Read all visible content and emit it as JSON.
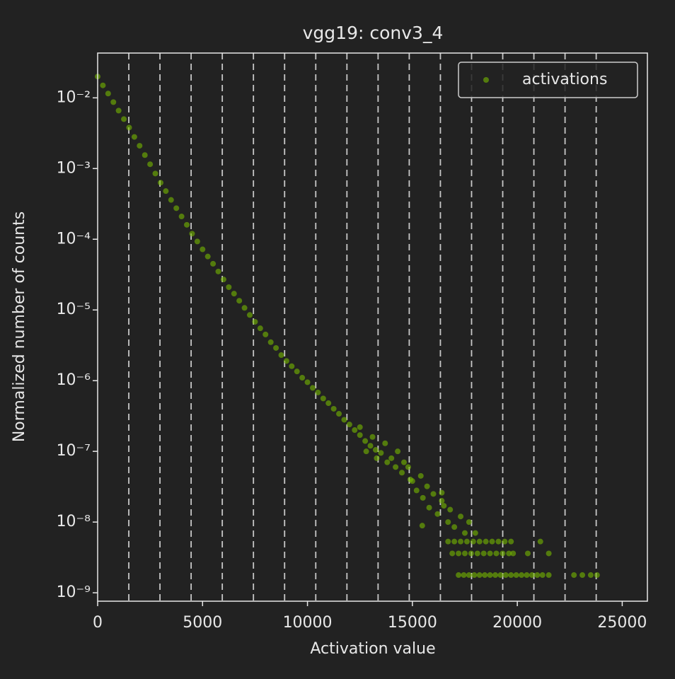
{
  "chart_data": {
    "type": "scatter",
    "title": "vgg19: conv3_4",
    "x_label": "Activation value",
    "y_label": "Normalized number of counts",
    "xlim": [
      0,
      26200
    ],
    "ylim": [
      7.6e-10,
      0.043
    ],
    "y_scale": "log",
    "xticks": [
      0,
      5000,
      10000,
      15000,
      20000,
      25000
    ],
    "yticks": [
      {
        "value": 0.01,
        "label": "10⁻²"
      },
      {
        "value": 0.001,
        "label": "10⁻³"
      },
      {
        "value": 0.0001,
        "label": "10⁻⁴"
      },
      {
        "value": 1e-05,
        "label": "10⁻⁵"
      },
      {
        "value": 1e-06,
        "label": "10⁻⁶"
      },
      {
        "value": 1e-07,
        "label": "10⁻⁷"
      },
      {
        "value": 1e-08,
        "label": "10⁻⁸"
      },
      {
        "value": 1e-09,
        "label": "10⁻⁹"
      }
    ],
    "vlines": [
      1485,
      2970,
      4455,
      5940,
      7425,
      8910,
      10395,
      11880,
      13365,
      14850,
      16335,
      17820,
      19305,
      20790,
      22275,
      23760
    ],
    "vline_color": "#c8c8c8",
    "legend": "upper right",
    "series": [
      {
        "name": "activations",
        "color": "#76b900",
        "x": [
          0,
          250,
          500,
          750,
          1000,
          1250,
          1500,
          1750,
          2000,
          2250,
          2500,
          2750,
          3000,
          3250,
          3500,
          3750,
          4000,
          4250,
          4500,
          4750,
          5000,
          5250,
          5500,
          5750,
          6000,
          6250,
          6500,
          6750,
          7000,
          7250,
          7500,
          7750,
          8000,
          8250,
          8500,
          8750,
          9000,
          9250,
          9500,
          9750,
          10000,
          10250,
          10500,
          10750,
          11000,
          11250,
          11500,
          11750,
          12000,
          12250,
          12500,
          12750,
          13000,
          13250,
          13500,
          12500,
          12800,
          13100,
          13300,
          13700,
          13800,
          14000,
          14200,
          14300,
          14500,
          14600,
          14800,
          14900,
          15000,
          15200,
          15400,
          15500,
          15700,
          15800,
          16000,
          16200,
          16400,
          16500,
          16700,
          16800,
          17000,
          17300,
          17500,
          17700,
          18000,
          15470,
          16400,
          16700,
          17000,
          17300,
          17600,
          17900,
          18200,
          18500,
          18800,
          19100,
          19400,
          19700,
          21100,
          16900,
          17200,
          17500,
          17800,
          18100,
          18400,
          18700,
          19000,
          19300,
          19600,
          19800,
          20500,
          21500,
          17200,
          17450,
          17700,
          17950,
          18200,
          18450,
          18700,
          18950,
          19200,
          19450,
          19700,
          19950,
          20200,
          20450,
          20700,
          20950,
          21200,
          21500,
          22700,
          23100,
          23500,
          23800
        ],
        "values": [
          0.02,
          0.015,
          0.0115,
          0.0087,
          0.0066,
          0.005,
          0.0038,
          0.0028,
          0.0021,
          0.00155,
          0.00115,
          0.00085,
          0.00063,
          0.00048,
          0.00036,
          0.000275,
          0.00021,
          0.00016,
          0.00012,
          9.3e-05,
          7.2e-05,
          5.7e-05,
          4.5e-05,
          3.5e-05,
          2.7e-05,
          2.1e-05,
          1.7e-05,
          1.35e-05,
          1.07e-05,
          8.5e-06,
          6.8e-06,
          5.5e-06,
          4.5e-06,
          3.5e-06,
          2.9e-06,
          2.3e-06,
          1.9e-06,
          1.6e-06,
          1.35e-06,
          1.1e-06,
          9.5e-07,
          7.9e-07,
          6.8e-07,
          5.6e-07,
          4.8e-07,
          4e-07,
          3.4e-07,
          2.8e-07,
          2.4e-07,
          2e-07,
          1.7e-07,
          1.4e-07,
          1.2e-07,
          1.05e-07,
          9.5e-08,
          2.2e-07,
          1e-07,
          1.6e-07,
          8e-08,
          1.3e-07,
          7e-08,
          8e-08,
          6e-08,
          1e-07,
          5e-08,
          7e-08,
          6e-08,
          4e-08,
          3.8e-08,
          2.8e-08,
          4.5e-08,
          2.2e-08,
          3.2e-08,
          1.6e-08,
          2.5e-08,
          1.3e-08,
          2e-08,
          1.7e-08,
          1e-08,
          1.5e-08,
          8.5e-09,
          1.2e-08,
          7e-09,
          1e-08,
          7e-09,
          8.9e-09,
          2.6e-08,
          5.3e-09,
          5.3e-09,
          5.3e-09,
          5.3e-09,
          5.3e-09,
          5.3e-09,
          5.3e-09,
          5.3e-09,
          5.3e-09,
          5.3e-09,
          5.3e-09,
          5.3e-09,
          3.6e-09,
          3.6e-09,
          3.6e-09,
          3.6e-09,
          3.6e-09,
          3.6e-09,
          3.6e-09,
          3.6e-09,
          3.6e-09,
          3.6e-09,
          3.6e-09,
          3.6e-09,
          3.6e-09,
          1.78e-09,
          1.78e-09,
          1.78e-09,
          1.78e-09,
          1.78e-09,
          1.78e-09,
          1.78e-09,
          1.78e-09,
          1.78e-09,
          1.78e-09,
          1.78e-09,
          1.78e-09,
          1.78e-09,
          1.78e-09,
          1.78e-09,
          1.78e-09,
          1.78e-09,
          1.78e-09,
          1.78e-09,
          1.78e-09,
          1.78e-09,
          1.78e-09
        ]
      }
    ]
  }
}
